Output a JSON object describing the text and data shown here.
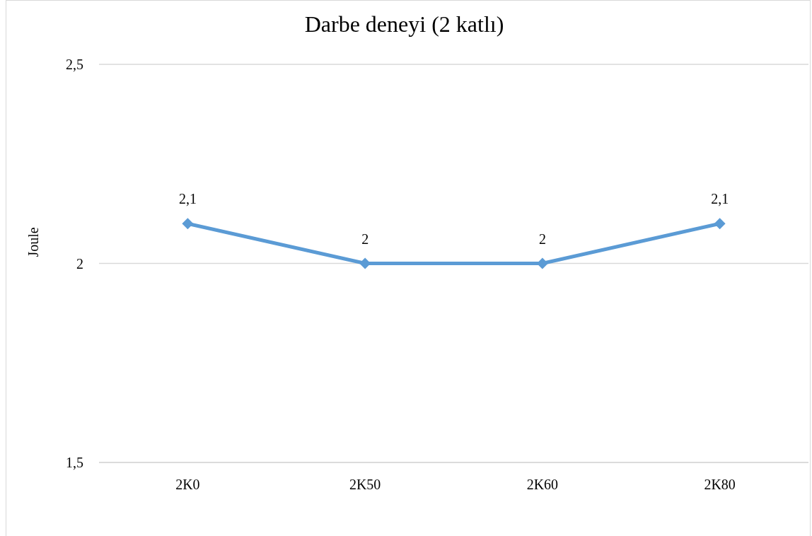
{
  "chart_data": {
    "type": "line",
    "title": "Darbe deneyi (2 katlı)",
    "ylabel": "Joule",
    "categories": [
      "2K0",
      "2K50",
      "2K60",
      "2K80"
    ],
    "series": [
      {
        "color": "#5b9bd5",
        "values": [
          2.1,
          2,
          2,
          2.1
        ],
        "value_labels": [
          "2,1",
          "2",
          "2",
          "2,1"
        ]
      }
    ],
    "ylim": [
      1.5,
      2.5
    ],
    "yticks": [
      {
        "value": 1.5,
        "label": "1,5"
      },
      {
        "value": 2,
        "label": "2"
      },
      {
        "value": 2.5,
        "label": "2,5"
      }
    ],
    "grid": "y",
    "marker": "diamond",
    "line_style": "solid"
  }
}
